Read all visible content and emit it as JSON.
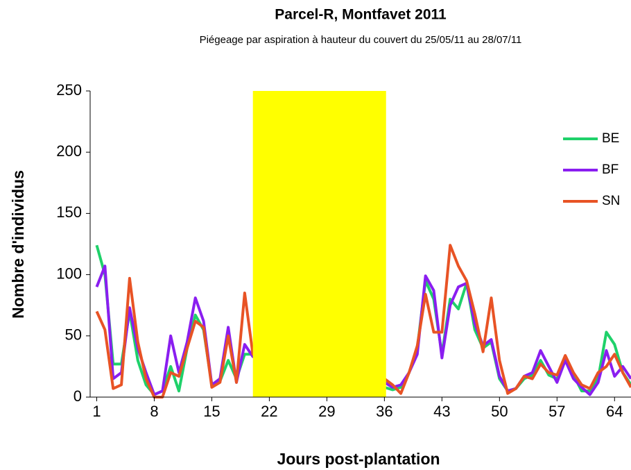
{
  "chart_data": {
    "type": "line",
    "title": "Parcel-R, Montfavet 2011",
    "subtitle": "Piégeage par aspiration à hauteur du couvert du 25/05/11 au 28/07/11",
    "x_label": "Jours post-plantation",
    "y_label": "Nombre d'individus",
    "x": [
      1,
      2,
      3,
      4,
      5,
      6,
      7,
      8,
      9,
      10,
      11,
      12,
      13,
      14,
      15,
      16,
      17,
      18,
      19,
      20,
      36,
      37,
      38,
      39,
      40,
      41,
      42,
      43,
      44,
      45,
      46,
      47,
      48,
      49,
      50,
      51,
      52,
      53,
      54,
      55,
      56,
      57,
      58,
      59,
      60,
      61,
      62,
      63,
      64,
      65,
      66
    ],
    "series": [
      {
        "name": "BE",
        "color": "#1fd16a",
        "values": [
          124,
          100,
          27,
          27,
          70,
          30,
          10,
          2,
          5,
          25,
          5,
          40,
          67,
          55,
          10,
          13,
          30,
          15,
          35,
          35,
          8,
          6,
          8,
          20,
          40,
          95,
          80,
          35,
          80,
          72,
          93,
          55,
          40,
          45,
          15,
          5,
          7,
          15,
          18,
          30,
          18,
          15,
          30,
          18,
          5,
          5,
          15,
          53,
          43,
          20,
          10
        ]
      },
      {
        "name": "BF",
        "color": "#8a1ef0",
        "values": [
          90,
          107,
          15,
          20,
          73,
          40,
          20,
          2,
          5,
          50,
          20,
          45,
          81,
          62,
          10,
          15,
          57,
          12,
          43,
          33,
          12,
          8,
          10,
          20,
          35,
          99,
          87,
          32,
          75,
          90,
          93,
          60,
          42,
          47,
          17,
          5,
          7,
          17,
          20,
          38,
          25,
          12,
          30,
          15,
          8,
          2,
          12,
          38,
          17,
          25,
          15
        ]
      },
      {
        "name": "SN",
        "color": "#e85325",
        "values": [
          70,
          55,
          7,
          10,
          97,
          45,
          15,
          0,
          0,
          20,
          17,
          40,
          62,
          57,
          8,
          12,
          50,
          12,
          85,
          35,
          15,
          10,
          3,
          20,
          42,
          84,
          53,
          53,
          124,
          107,
          95,
          68,
          37,
          81,
          30,
          3,
          7,
          17,
          15,
          27,
          20,
          18,
          34,
          20,
          10,
          7,
          20,
          25,
          35,
          20,
          8
        ]
      }
    ],
    "shaded_region": {
      "x": [
        20,
        36.2
      ],
      "color": "#ffff00"
    },
    "xlim": [
      0.2,
      66
    ],
    "xticks": [
      1,
      8,
      15,
      22,
      29,
      36,
      43,
      50,
      57,
      64
    ],
    "ylim": [
      0,
      250
    ],
    "yticks": [
      0,
      50,
      100,
      150,
      200,
      250
    ],
    "legend": "right"
  }
}
